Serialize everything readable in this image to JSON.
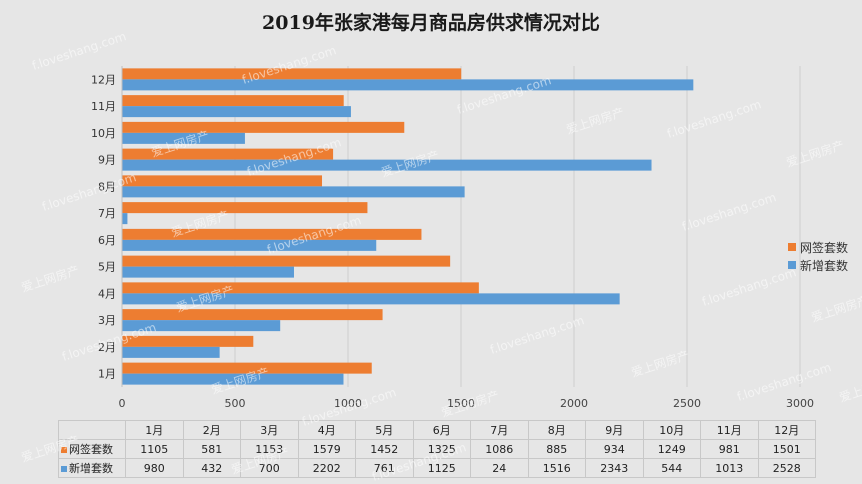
{
  "chart_data": {
    "type": "bar",
    "orientation": "horizontal",
    "title": "2019年张家港每月商品房供求情况对比",
    "categories": [
      "1月",
      "2月",
      "3月",
      "4月",
      "5月",
      "6月",
      "7月",
      "8月",
      "9月",
      "10月",
      "11月",
      "12月"
    ],
    "series": [
      {
        "name": "网签套数",
        "color": "#ed7d31",
        "values": [
          1105,
          581,
          1153,
          1579,
          1452,
          1325,
          1086,
          885,
          934,
          1249,
          981,
          1501
        ]
      },
      {
        "name": "新增套数",
        "color": "#5b9bd5",
        "values": [
          980,
          432,
          700,
          2202,
          761,
          1125,
          24,
          1516,
          2343,
          544,
          1013,
          2528
        ]
      }
    ],
    "xlim": [
      0,
      3000
    ],
    "x_ticks": [
      0,
      500,
      1000,
      1500,
      2000,
      2500,
      3000
    ],
    "grid": true,
    "legend_position": "right",
    "data_table": true
  },
  "watermarks": [
    "f.loveshang.com",
    "爱上网房产"
  ]
}
